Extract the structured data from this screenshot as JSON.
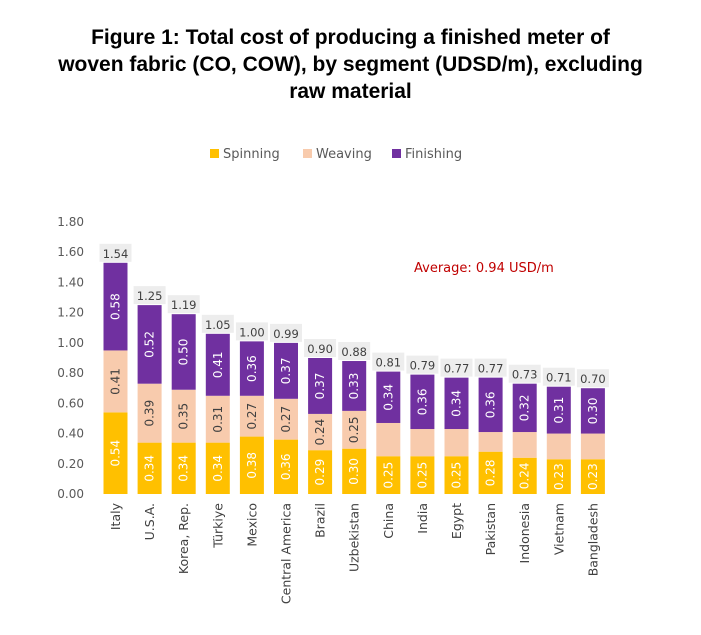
{
  "title_lines": [
    "Figure 1: Total cost of producing a finished meter of",
    "woven fabric (CO, COW), by segment (UDSD/m), excluding",
    "raw material"
  ],
  "colors": {
    "spinning": "#FFC000",
    "weaving": "#F8CBAD",
    "finishing": "#7030A0",
    "average_text": "#C00000",
    "total_label_bg": "#EDEDED"
  },
  "chart_data": {
    "type": "bar",
    "stacked": true,
    "title": "Figure 1: Total cost of producing a finished meter of woven fabric (CO, COW), by segment (UDSD/m), excluding raw material",
    "categories": [
      "Italy",
      "U.S.A.",
      "Korea, Rep.",
      "Türkiye",
      "Mexico",
      "Central America",
      "Brazil",
      "Uzbekistan",
      "China",
      "India",
      "Egypt",
      "Pakistan",
      "Indonesia",
      "Vietnam",
      "Bangladesh"
    ],
    "series": [
      {
        "name": "Spinning",
        "values": [
          0.54,
          0.34,
          0.34,
          0.34,
          0.38,
          0.36,
          0.29,
          0.3,
          0.25,
          0.25,
          0.25,
          0.28,
          0.24,
          0.23,
          0.23
        ],
        "labels": [
          "0.54",
          "0.34",
          "0.34",
          "0.34",
          "0.38",
          "0.36",
          "0.29",
          "0.30",
          "0.25",
          "0.25",
          "0.25",
          "0.28",
          "0.24",
          "0.23",
          "0.23"
        ]
      },
      {
        "name": "Weaving",
        "values": [
          0.41,
          0.39,
          0.35,
          0.31,
          0.27,
          0.27,
          0.24,
          0.25,
          0.22,
          0.18,
          0.18,
          0.13,
          0.17,
          0.17,
          0.17
        ],
        "labels": [
          "0.41",
          "0.39",
          "0.35",
          "0.31",
          "0.27",
          "0.27",
          "0.24",
          "0.25",
          "",
          "",
          "",
          "",
          "",
          "",
          ""
        ]
      },
      {
        "name": "Finishing",
        "values": [
          0.58,
          0.52,
          0.5,
          0.41,
          0.36,
          0.37,
          0.37,
          0.33,
          0.34,
          0.36,
          0.34,
          0.36,
          0.32,
          0.31,
          0.3
        ],
        "labels": [
          "0.58",
          "0.52",
          "0.50",
          "0.41",
          "0.36",
          "0.37",
          "0.37",
          "0.33",
          "0.34",
          "0.36",
          "0.34",
          "0.36",
          "0.32",
          "0.31",
          "0.30"
        ]
      }
    ],
    "totals": [
      "1.54",
      "1.25",
      "1.19",
      "1.05",
      "1.00",
      "0.99",
      "0.90",
      "0.88",
      "0.81",
      "0.79",
      "0.77",
      "0.77",
      "0.73",
      "0.71",
      "0.70"
    ],
    "y_ticks": [
      "0.00",
      "0.20",
      "0.40",
      "0.60",
      "0.80",
      "1.00",
      "1.20",
      "1.40",
      "1.60",
      "1.80"
    ],
    "ylim": [
      0,
      1.8
    ],
    "annotation": "Average: 0.94 USD/m",
    "legend_position": "top",
    "grid": false
  }
}
